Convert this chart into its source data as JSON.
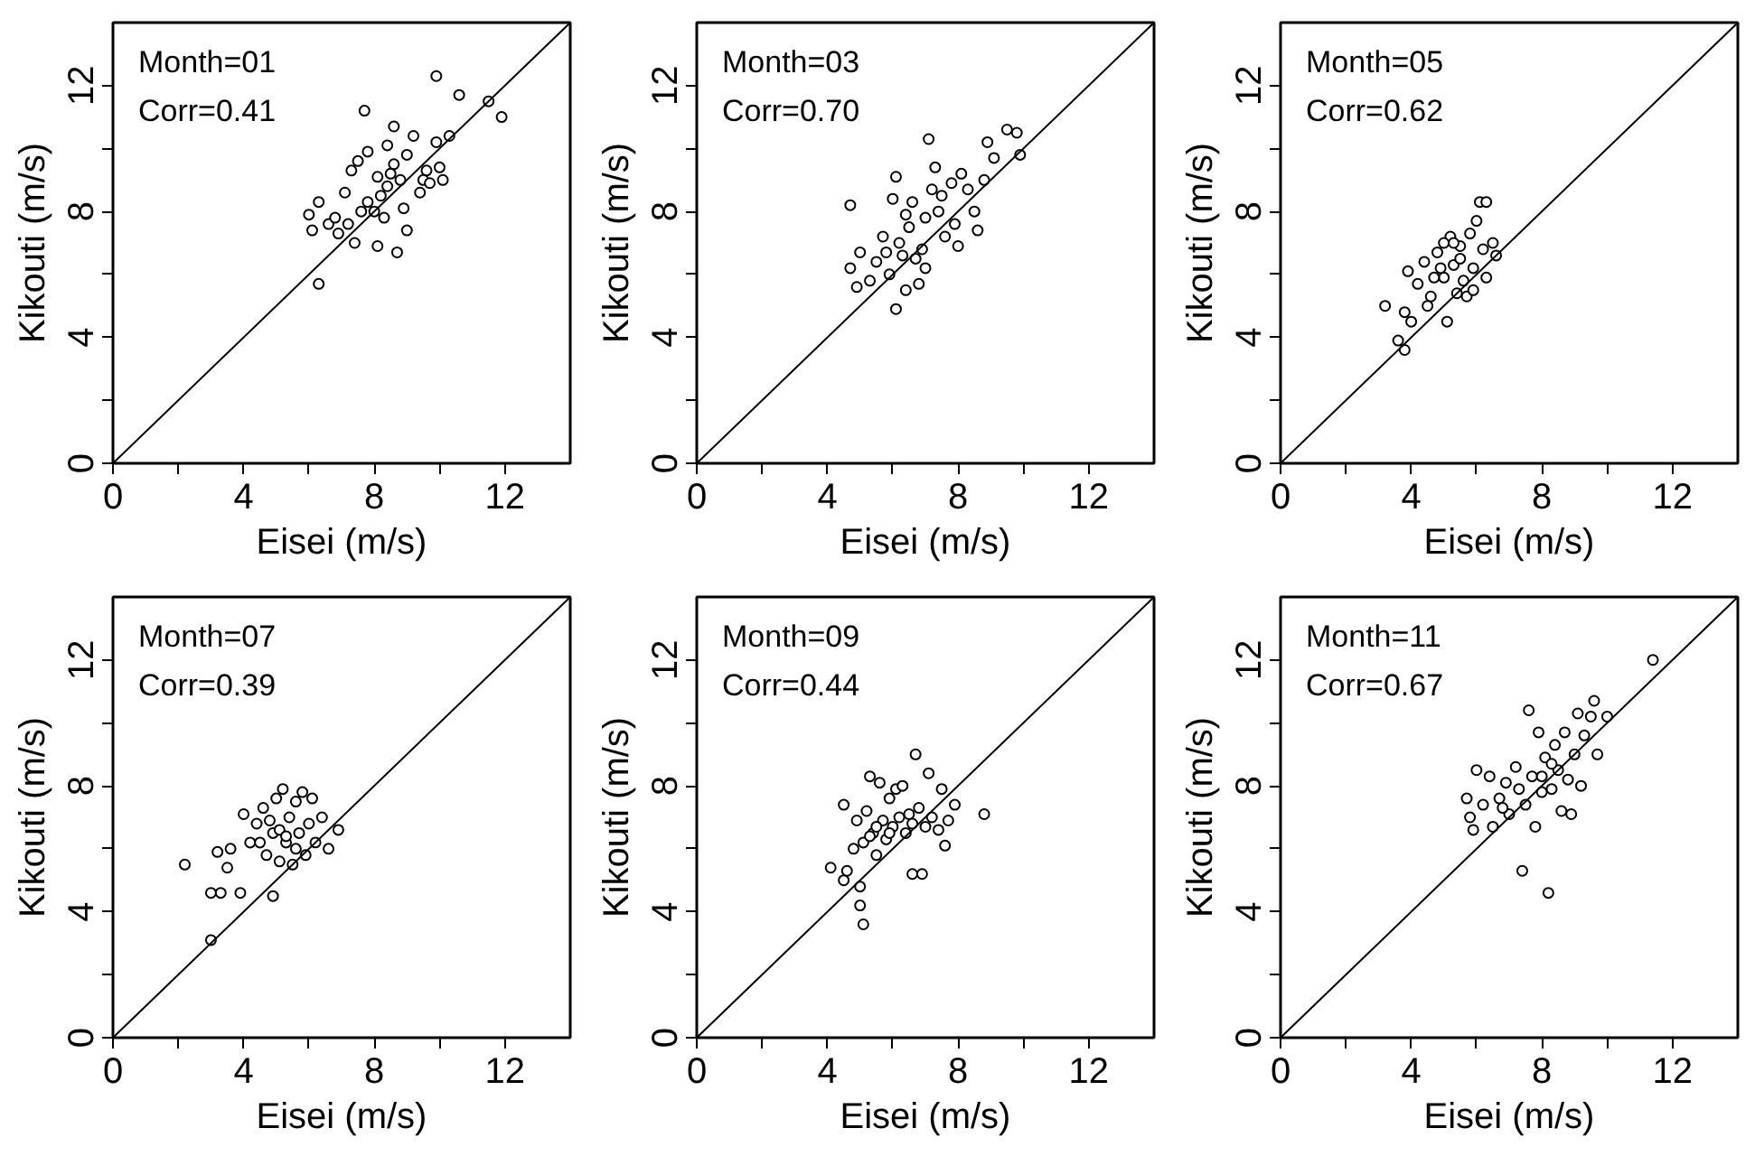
{
  "chart_data": [
    {
      "type": "scatter",
      "xlabel": "Eisei (m/s)",
      "ylabel": "Kikouti (m/s)",
      "xlim": [
        0,
        14
      ],
      "ylim": [
        0,
        14
      ],
      "xticks": [
        0,
        {
          "value": 2,
          "label": null
        },
        4,
        {
          "value": 6,
          "label": null
        },
        8,
        {
          "value": 10,
          "label": null
        },
        12
      ],
      "yticks": [
        0,
        {
          "value": 2,
          "label": null
        },
        4,
        {
          "value": 6,
          "label": null
        },
        8,
        {
          "value": 10,
          "label": null
        },
        12
      ],
      "annotations": [
        "Month=01",
        "Corr=0.41"
      ],
      "series": [
        {
          "marker": "circle",
          "color": "#000000",
          "x": [
            6.3,
            7.7,
            9.9,
            10.6,
            11.5,
            11.9,
            8.6,
            8.7,
            8.1,
            9.0,
            6.0,
            6.1,
            6.3,
            6.6,
            6.9,
            7.1,
            7.4,
            7.3,
            7.5,
            7.8,
            8.0,
            8.2,
            8.4,
            8.5,
            8.8,
            9.0,
            9.2,
            9.4,
            9.6,
            9.9,
            10.0,
            10.3,
            8.3,
            7.8,
            8.9,
            9.5,
            6.8,
            7.2,
            8.6,
            10.1,
            7.6,
            8.1,
            9.7,
            8.4
          ],
          "values": [
            5.7,
            11.2,
            12.3,
            11.7,
            11.5,
            11.0,
            10.7,
            6.7,
            6.9,
            7.4,
            7.9,
            7.4,
            8.3,
            7.6,
            7.3,
            8.6,
            7.0,
            9.3,
            9.6,
            9.9,
            8.0,
            8.5,
            10.1,
            9.2,
            9.0,
            9.8,
            10.4,
            8.6,
            9.3,
            10.2,
            9.4,
            10.4,
            7.8,
            8.3,
            8.1,
            9.0,
            7.8,
            7.6,
            9.5,
            9.0,
            8.0,
            9.1,
            8.9,
            8.8
          ]
        },
        {
          "type": "line",
          "color": "#000000",
          "x": [
            0,
            14
          ],
          "values": [
            0,
            14
          ]
        }
      ]
    },
    {
      "type": "scatter",
      "xlabel": "Eisei (m/s)",
      "ylabel": "Kikouti (m/s)",
      "xlim": [
        0,
        14
      ],
      "ylim": [
        0,
        14
      ],
      "xticks": [
        0,
        {
          "value": 2,
          "label": null
        },
        4,
        {
          "value": 6,
          "label": null
        },
        8,
        {
          "value": 10,
          "label": null
        },
        12
      ],
      "yticks": [
        0,
        {
          "value": 2,
          "label": null
        },
        4,
        {
          "value": 6,
          "label": null
        },
        8,
        {
          "value": 10,
          "label": null
        },
        12
      ],
      "annotations": [
        "Month=03",
        "Corr=0.70"
      ],
      "series": [
        {
          "marker": "circle",
          "color": "#000000",
          "x": [
            4.7,
            4.7,
            4.9,
            5.0,
            5.3,
            5.5,
            5.7,
            5.9,
            6.0,
            6.1,
            6.1,
            6.3,
            6.4,
            6.5,
            6.6,
            6.8,
            6.9,
            7.0,
            7.1,
            7.2,
            7.3,
            7.5,
            7.6,
            7.9,
            8.0,
            8.1,
            8.3,
            8.5,
            8.6,
            8.8,
            8.9,
            9.1,
            9.5,
            9.8,
            9.9,
            6.2,
            6.7,
            7.0,
            7.4,
            5.8,
            6.4,
            7.8
          ],
          "values": [
            8.2,
            6.2,
            5.6,
            6.7,
            5.8,
            6.4,
            7.2,
            6.0,
            8.4,
            4.9,
            9.1,
            6.6,
            5.5,
            7.5,
            8.3,
            5.7,
            6.8,
            6.2,
            10.3,
            8.7,
            9.4,
            8.5,
            7.2,
            7.6,
            6.9,
            9.2,
            8.7,
            8.0,
            7.4,
            9.0,
            10.2,
            9.7,
            10.6,
            10.5,
            9.8,
            7.0,
            6.5,
            7.8,
            8.0,
            6.7,
            7.9,
            8.9
          ]
        },
        {
          "type": "line",
          "color": "#000000",
          "x": [
            0,
            14
          ],
          "values": [
            0,
            14
          ]
        }
      ]
    },
    {
      "type": "scatter",
      "xlabel": "Eisei (m/s)",
      "ylabel": "Kikouti (m/s)",
      "xlim": [
        0,
        14
      ],
      "ylim": [
        0,
        14
      ],
      "xticks": [
        0,
        {
          "value": 2,
          "label": null
        },
        4,
        {
          "value": 6,
          "label": null
        },
        8,
        {
          "value": 10,
          "label": null
        },
        12
      ],
      "yticks": [
        0,
        {
          "value": 2,
          "label": null
        },
        4,
        {
          "value": 6,
          "label": null
        },
        8,
        {
          "value": 10,
          "label": null
        },
        12
      ],
      "annotations": [
        "Month=05",
        "Corr=0.62"
      ],
      "series": [
        {
          "marker": "circle",
          "color": "#000000",
          "x": [
            3.2,
            3.6,
            3.8,
            3.8,
            4.0,
            3.9,
            4.2,
            4.4,
            4.6,
            4.8,
            5.0,
            5.1,
            5.2,
            5.3,
            5.4,
            5.5,
            5.6,
            5.8,
            5.9,
            6.0,
            6.1,
            6.3,
            6.3,
            6.5,
            6.6,
            4.7,
            5.7,
            6.2,
            4.5,
            5.0,
            5.5,
            5.9,
            4.9,
            5.3
          ],
          "values": [
            5.0,
            3.9,
            3.6,
            4.8,
            4.5,
            6.1,
            5.7,
            6.4,
            5.3,
            6.7,
            5.9,
            4.5,
            7.2,
            6.3,
            5.4,
            6.9,
            5.8,
            7.3,
            6.2,
            7.7,
            8.3,
            8.3,
            5.9,
            7.0,
            6.6,
            5.9,
            5.3,
            6.8,
            5.0,
            7.0,
            6.5,
            5.5,
            6.2,
            7.0
          ]
        },
        {
          "type": "line",
          "color": "#000000",
          "x": [
            0,
            14
          ],
          "values": [
            0,
            14
          ]
        }
      ]
    },
    {
      "type": "scatter",
      "xlabel": "Eisei (m/s)",
      "ylabel": "Kikouti (m/s)",
      "xlim": [
        0,
        14
      ],
      "ylim": [
        0,
        14
      ],
      "xticks": [
        0,
        {
          "value": 2,
          "label": null
        },
        4,
        {
          "value": 6,
          "label": null
        },
        8,
        {
          "value": 10,
          "label": null
        },
        12
      ],
      "yticks": [
        0,
        {
          "value": 2,
          "label": null
        },
        4,
        {
          "value": 6,
          "label": null
        },
        8,
        {
          "value": 10,
          "label": null
        },
        12
      ],
      "annotations": [
        "Month=07",
        "Corr=0.39"
      ],
      "series": [
        {
          "marker": "circle",
          "color": "#000000",
          "x": [
            2.2,
            3.0,
            3.0,
            3.3,
            3.2,
            3.6,
            3.5,
            3.9,
            4.9,
            4.0,
            4.2,
            4.4,
            4.6,
            4.7,
            4.9,
            5.0,
            5.1,
            5.2,
            5.3,
            5.4,
            5.5,
            5.6,
            5.7,
            5.8,
            5.9,
            6.0,
            6.1,
            6.2,
            6.4,
            6.6,
            6.9,
            4.8,
            5.1,
            5.3,
            5.6,
            4.5
          ],
          "values": [
            5.5,
            3.1,
            4.6,
            4.6,
            5.9,
            6.0,
            5.4,
            4.6,
            4.5,
            7.1,
            6.2,
            6.8,
            7.3,
            5.8,
            6.5,
            7.6,
            5.6,
            7.9,
            6.2,
            7.0,
            5.5,
            7.5,
            6.5,
            7.8,
            5.8,
            6.8,
            7.6,
            6.2,
            7.0,
            6.0,
            6.6,
            6.9,
            6.6,
            6.4,
            6.0,
            6.2
          ]
        },
        {
          "type": "line",
          "color": "#000000",
          "x": [
            0,
            14
          ],
          "values": [
            0,
            14
          ]
        }
      ]
    },
    {
      "type": "scatter",
      "xlabel": "Eisei (m/s)",
      "ylabel": "Kikouti (m/s)",
      "xlim": [
        0,
        14
      ],
      "ylim": [
        0,
        14
      ],
      "xticks": [
        0,
        {
          "value": 2,
          "label": null
        },
        4,
        {
          "value": 6,
          "label": null
        },
        8,
        {
          "value": 10,
          "label": null
        },
        12
      ],
      "yticks": [
        0,
        {
          "value": 2,
          "label": null
        },
        4,
        {
          "value": 6,
          "label": null
        },
        8,
        {
          "value": 10,
          "label": null
        },
        12
      ],
      "annotations": [
        "Month=09",
        "Corr=0.44"
      ],
      "series": [
        {
          "marker": "circle",
          "color": "#000000",
          "x": [
            4.1,
            4.5,
            4.5,
            4.6,
            4.8,
            5.0,
            5.0,
            5.1,
            4.9,
            5.1,
            5.2,
            5.3,
            5.4,
            5.5,
            5.6,
            5.7,
            5.8,
            5.9,
            6.0,
            6.1,
            6.3,
            6.4,
            6.5,
            6.6,
            6.9,
            6.7,
            6.8,
            7.0,
            7.1,
            7.2,
            7.4,
            7.5,
            7.6,
            7.7,
            7.9,
            8.8,
            5.5,
            5.9,
            6.2,
            6.6,
            5.3
          ],
          "values": [
            5.4,
            7.4,
            5.0,
            5.3,
            6.0,
            4.8,
            4.2,
            3.6,
            6.9,
            6.2,
            7.2,
            8.3,
            6.5,
            5.8,
            8.1,
            6.9,
            6.3,
            7.6,
            6.7,
            7.9,
            8.0,
            6.5,
            7.1,
            5.2,
            5.2,
            9.0,
            7.3,
            6.7,
            8.4,
            7.0,
            6.6,
            7.9,
            6.1,
            6.9,
            7.4,
            7.1,
            6.7,
            6.5,
            7.0,
            6.8,
            6.4
          ]
        },
        {
          "type": "line",
          "color": "#000000",
          "x": [
            0,
            14
          ],
          "values": [
            0,
            14
          ]
        }
      ]
    },
    {
      "type": "scatter",
      "xlabel": "Eisei (m/s)",
      "ylabel": "Kikouti (m/s)",
      "xlim": [
        0,
        14
      ],
      "ylim": [
        0,
        14
      ],
      "xticks": [
        0,
        {
          "value": 2,
          "label": null
        },
        4,
        {
          "value": 6,
          "label": null
        },
        8,
        {
          "value": 10,
          "label": null
        },
        12
      ],
      "yticks": [
        0,
        {
          "value": 2,
          "label": null
        },
        4,
        {
          "value": 6,
          "label": null
        },
        8,
        {
          "value": 10,
          "label": null
        },
        12
      ],
      "annotations": [
        "Month=11",
        "Corr=0.67"
      ],
      "series": [
        {
          "marker": "circle",
          "color": "#000000",
          "x": [
            5.7,
            5.8,
            5.9,
            6.0,
            6.2,
            6.4,
            6.5,
            6.7,
            6.9,
            7.0,
            7.2,
            7.4,
            7.5,
            7.6,
            7.7,
            7.8,
            7.9,
            8.0,
            8.1,
            8.2,
            8.3,
            8.4,
            8.5,
            8.6,
            8.7,
            8.8,
            8.9,
            9.0,
            9.1,
            9.2,
            9.3,
            9.5,
            9.6,
            9.7,
            10.0,
            11.4,
            8.0,
            8.3,
            7.3,
            6.8
          ],
          "values": [
            7.6,
            7.0,
            6.6,
            8.5,
            7.4,
            8.3,
            6.7,
            7.6,
            8.1,
            7.1,
            8.6,
            5.3,
            7.4,
            10.4,
            8.3,
            6.7,
            9.7,
            7.8,
            8.9,
            4.6,
            7.9,
            9.3,
            8.5,
            7.2,
            9.7,
            8.2,
            7.1,
            9.0,
            10.3,
            8.0,
            9.6,
            10.2,
            10.7,
            9.0,
            10.2,
            12.0,
            8.3,
            8.7,
            7.9,
            7.3
          ]
        },
        {
          "type": "line",
          "color": "#000000",
          "x": [
            0,
            14
          ],
          "values": [
            0,
            14
          ]
        }
      ]
    }
  ]
}
